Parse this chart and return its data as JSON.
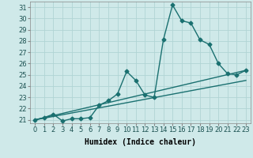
{
  "title": "",
  "xlabel": "Humidex (Indice chaleur)",
  "xlim_min": -0.5,
  "xlim_max": 23.5,
  "ylim_min": 20.7,
  "ylim_max": 31.5,
  "xticks": [
    0,
    1,
    2,
    3,
    4,
    5,
    6,
    7,
    8,
    9,
    10,
    11,
    12,
    13,
    14,
    15,
    16,
    17,
    18,
    19,
    20,
    21,
    22,
    23
  ],
  "yticks": [
    21,
    22,
    23,
    24,
    25,
    26,
    27,
    28,
    29,
    30,
    31
  ],
  "background_color": "#cfe9e9",
  "grid_color": "#b0d4d4",
  "line_color": "#1a7070",
  "line1_x": [
    0,
    1,
    2,
    3,
    4,
    5,
    6,
    7,
    8,
    9,
    10,
    11,
    12,
    13,
    14,
    15,
    16,
    17,
    18,
    19,
    20,
    21,
    22,
    23
  ],
  "line1_y": [
    21.0,
    21.2,
    21.5,
    20.9,
    21.1,
    21.1,
    21.2,
    22.3,
    22.7,
    23.3,
    25.3,
    24.5,
    23.2,
    23.0,
    28.1,
    31.2,
    29.8,
    29.6,
    28.1,
    27.7,
    26.0,
    25.1,
    25.0,
    25.4
  ],
  "line3_x": [
    0,
    23
  ],
  "line3_y": [
    21.0,
    25.4
  ],
  "line4_x": [
    0,
    23
  ],
  "line4_y": [
    21.0,
    24.5
  ],
  "marker": "D",
  "marker_size": 2.5,
  "line_width": 1.0,
  "tick_fontsize": 6,
  "xlabel_fontsize": 7,
  "label_fontweight": "bold"
}
